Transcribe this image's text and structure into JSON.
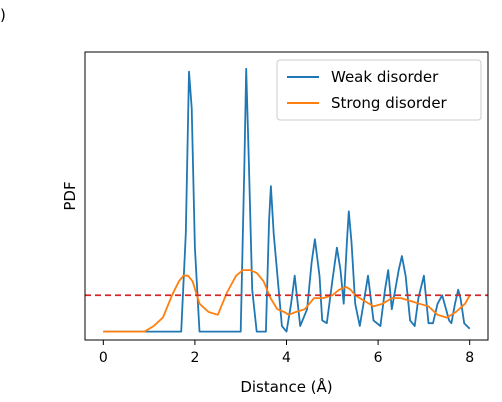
{
  "panel_label": ")",
  "chart_data": {
    "type": "line",
    "title": "",
    "xlabel": "Distance (Å)",
    "ylabel": "PDF",
    "xlim": [
      -0.4,
      8.4
    ],
    "ylim": [
      -0.03,
      1.0
    ],
    "xticks": [
      0,
      2,
      4,
      6,
      8
    ],
    "yticks_visible": false,
    "grid": false,
    "legend_position": "top-right",
    "reference_line": {
      "y": 0.13,
      "color": "#d62728",
      "style": "dashed"
    },
    "series": [
      {
        "name": "Weak disorder",
        "color": "#1f77b4",
        "x": [
          0,
          1.7,
          1.8,
          1.87,
          1.93,
          2.0,
          2.1,
          3.0,
          3.08,
          3.12,
          3.18,
          3.25,
          3.35,
          3.55,
          3.62,
          3.66,
          3.72,
          3.9,
          4.0,
          4.1,
          4.18,
          4.3,
          4.45,
          4.55,
          4.62,
          4.72,
          4.78,
          4.88,
          5.0,
          5.1,
          5.18,
          5.25,
          5.32,
          5.36,
          5.42,
          5.5,
          5.6,
          5.7,
          5.78,
          5.9,
          6.05,
          6.15,
          6.22,
          6.3,
          6.45,
          6.52,
          6.6,
          6.7,
          6.8,
          6.88,
          7.0,
          7.1,
          7.2,
          7.3,
          7.4,
          7.55,
          7.6,
          7.68,
          7.75,
          7.8,
          7.88,
          8.0
        ],
        "y": [
          0,
          0,
          0.35,
          0.93,
          0.8,
          0.3,
          0,
          0,
          0.6,
          0.94,
          0.6,
          0.15,
          0,
          0,
          0.4,
          0.52,
          0.35,
          0.02,
          0,
          0.1,
          0.2,
          0.02,
          0.08,
          0.25,
          0.33,
          0.2,
          0.04,
          0.03,
          0.18,
          0.3,
          0.22,
          0.1,
          0.32,
          0.43,
          0.32,
          0.1,
          0.02,
          0.12,
          0.2,
          0.04,
          0.02,
          0.15,
          0.22,
          0.08,
          0.22,
          0.27,
          0.2,
          0.04,
          0.02,
          0.12,
          0.2,
          0.03,
          0.03,
          0.1,
          0.13,
          0.04,
          0.03,
          0.1,
          0.15,
          0.12,
          0.03,
          0.01
        ]
      },
      {
        "name": "Strong disorder",
        "color": "#ff7f0e",
        "x": [
          0,
          0.9,
          1.1,
          1.3,
          1.5,
          1.65,
          1.75,
          1.85,
          1.95,
          2.1,
          2.3,
          2.5,
          2.7,
          2.9,
          3.05,
          3.2,
          3.35,
          3.5,
          3.65,
          3.8,
          3.95,
          4.05,
          4.2,
          4.4,
          4.6,
          4.8,
          5.0,
          5.15,
          5.3,
          5.4,
          5.5,
          5.7,
          5.9,
          6.1,
          6.3,
          6.5,
          6.7,
          6.9,
          7.1,
          7.3,
          7.5,
          7.7,
          7.9,
          8.0
        ],
        "y": [
          0,
          0,
          0.02,
          0.05,
          0.13,
          0.18,
          0.2,
          0.2,
          0.18,
          0.1,
          0.07,
          0.06,
          0.14,
          0.2,
          0.22,
          0.22,
          0.21,
          0.18,
          0.12,
          0.08,
          0.07,
          0.06,
          0.07,
          0.08,
          0.12,
          0.12,
          0.13,
          0.15,
          0.16,
          0.15,
          0.13,
          0.11,
          0.09,
          0.1,
          0.12,
          0.12,
          0.11,
          0.1,
          0.09,
          0.06,
          0.05,
          0.07,
          0.1,
          0.13
        ]
      }
    ]
  }
}
